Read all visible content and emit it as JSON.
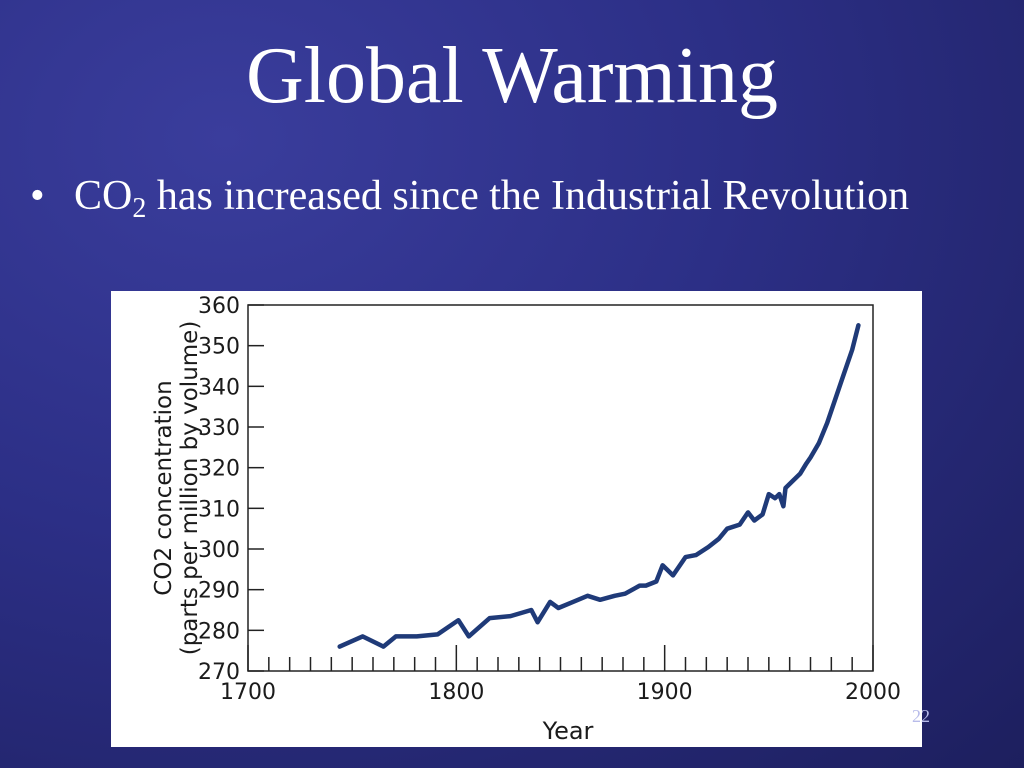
{
  "slide": {
    "title": "Global Warming",
    "bullet_symbol": "•",
    "bullet_text_before": "CO",
    "bullet_subscript": "2",
    "bullet_text_after": " has increased since the Industrial Revolution",
    "page_number": "22"
  },
  "colors": {
    "line": "#1f3a78",
    "background": "#2c2f86",
    "text": "#ffffff"
  },
  "chart_data": {
    "type": "line",
    "title": "",
    "xlabel": "Year",
    "ylabel_line1": "CO2 concentration",
    "ylabel_line2": "(parts per million by volume)",
    "xlim": [
      1700,
      2000
    ],
    "ylim": [
      270,
      360
    ],
    "x_ticks": [
      1700,
      1800,
      1900,
      2000
    ],
    "y_ticks": [
      270,
      280,
      290,
      300,
      310,
      320,
      330,
      340,
      350,
      360
    ],
    "grid": false,
    "series": [
      {
        "x": [
          1744,
          1755,
          1765,
          1771,
          1781,
          1791,
          1801,
          1806,
          1816,
          1826,
          1836,
          1839,
          1845,
          1849,
          1856,
          1863,
          1869,
          1876,
          1881,
          1888,
          1891,
          1896,
          1899,
          1904,
          1910,
          1915,
          1921,
          1926,
          1930,
          1936,
          1940,
          1943,
          1947,
          1950,
          1953,
          1955,
          1957,
          1958,
          1962,
          1965,
          1968,
          1970,
          1974,
          1978,
          1982,
          1986,
          1990,
          1993
        ],
        "y": [
          276,
          278.5,
          276,
          278.5,
          278.5,
          279,
          282.5,
          278.5,
          283,
          283.5,
          285,
          282,
          287,
          285.5,
          287,
          288.5,
          287.5,
          288.5,
          289,
          291,
          291,
          292,
          296,
          293.5,
          298,
          298.5,
          300.5,
          302.5,
          305,
          306,
          309,
          307,
          308.5,
          313.5,
          312.5,
          313.5,
          310.5,
          315,
          317,
          318.5,
          321,
          322.5,
          326,
          331,
          337,
          343,
          349,
          355
        ]
      }
    ]
  }
}
